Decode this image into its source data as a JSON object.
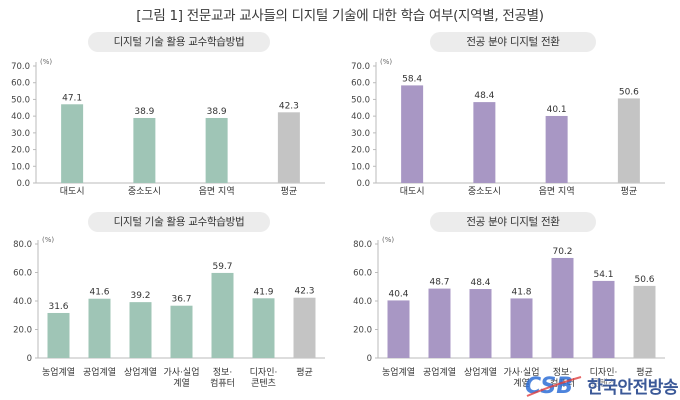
{
  "figure_title": "[그림 1] 전문교과 교사들의 디지털 기술에 대한 학습 여부(지역별, 전공별)",
  "watermark": {
    "text": "한국안전방송",
    "logo_letters": "CSB"
  },
  "colors": {
    "green": "#9fc5b6",
    "purple": "#a897c4",
    "gray": "#c4c4c4"
  },
  "chart_data": [
    {
      "id": "tl",
      "type": "bar",
      "title": "디지털 기술 활용 교수학습방법",
      "unit": "(%)",
      "categories": [
        "대도시",
        "중소도시",
        "읍면 지역",
        "평균"
      ],
      "values": [
        47.1,
        38.9,
        38.9,
        42.3
      ],
      "value_labels": [
        "47.1",
        "38.9",
        "38.9",
        "42.3"
      ],
      "bar_colors": [
        "green",
        "green",
        "green",
        "gray"
      ],
      "ylim": [
        0,
        70
      ],
      "yticks": [
        "0.0",
        "10.0",
        "20.0",
        "30.0",
        "40.0",
        "50.0",
        "60.0",
        "70.0"
      ]
    },
    {
      "id": "tr",
      "type": "bar",
      "title": "전공 분야 디지털 전환",
      "unit": "(%)",
      "categories": [
        "대도시",
        "중소도시",
        "읍면 지역",
        "평균"
      ],
      "values": [
        58.4,
        48.4,
        40.1,
        50.6
      ],
      "value_labels": [
        "58.4",
        "48.4",
        "40.1",
        "50.6"
      ],
      "bar_colors": [
        "purple",
        "purple",
        "purple",
        "gray"
      ],
      "ylim": [
        0,
        70
      ],
      "yticks": [
        "0.0",
        "10.0",
        "20.0",
        "30.0",
        "40.0",
        "50.0",
        "60.0",
        "70.0"
      ]
    },
    {
      "id": "bl",
      "type": "bar",
      "title": "디지털 기술 활용 교수학습방법",
      "unit": "(%)",
      "categories": [
        [
          "농업계열"
        ],
        [
          "공업계열"
        ],
        [
          "상업계열"
        ],
        [
          "가사·실업",
          "계열"
        ],
        [
          "정보·",
          "컴퓨터"
        ],
        [
          "디자인·",
          "콘텐츠"
        ],
        [
          "평균"
        ]
      ],
      "values": [
        31.6,
        41.6,
        39.2,
        36.7,
        59.7,
        41.9,
        42.3
      ],
      "value_labels": [
        "31.6",
        "41.6",
        "39.2",
        "36.7",
        "59.7",
        "41.9",
        "42.3"
      ],
      "bar_colors": [
        "green",
        "green",
        "green",
        "green",
        "green",
        "green",
        "gray"
      ],
      "ylim": [
        0,
        80
      ],
      "yticks": [
        "0",
        "20.0",
        "40.0",
        "60.0",
        "80.0"
      ]
    },
    {
      "id": "br",
      "type": "bar",
      "title": "전공 분야 디지털 전환",
      "unit": "(%)",
      "categories": [
        [
          "농업계열"
        ],
        [
          "공업계열"
        ],
        [
          "상업계열"
        ],
        [
          "가사·실업",
          "계열"
        ],
        [
          "정보·",
          "컴퓨터"
        ],
        [
          "디자인·",
          "콘텐츠"
        ],
        [
          "평균"
        ]
      ],
      "values": [
        40.4,
        48.7,
        48.4,
        41.8,
        70.2,
        54.1,
        50.6
      ],
      "value_labels": [
        "40.4",
        "48.7",
        "48.4",
        "41.8",
        "70.2",
        "54.1",
        "50.6"
      ],
      "bar_colors": [
        "purple",
        "purple",
        "purple",
        "purple",
        "purple",
        "purple",
        "gray"
      ],
      "ylim": [
        0,
        80
      ],
      "yticks": [
        "0",
        "20.0",
        "40.0",
        "60.0",
        "80.0"
      ]
    }
  ]
}
